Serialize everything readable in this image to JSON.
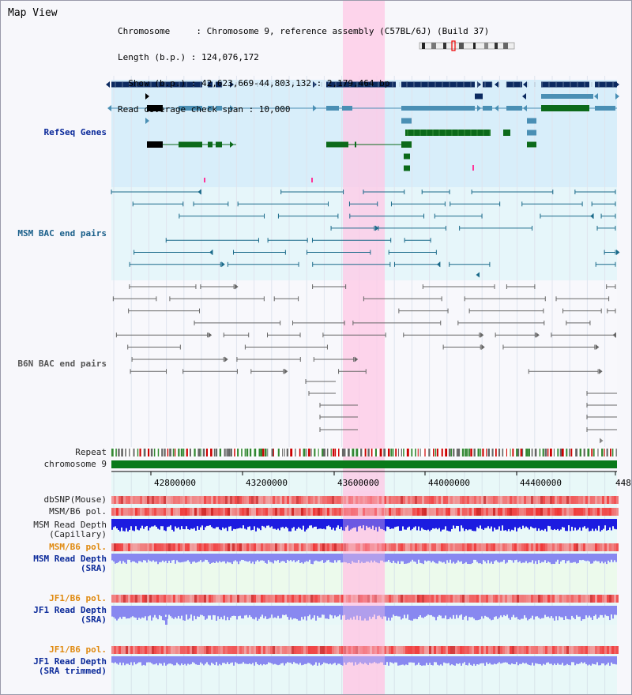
{
  "panel_title": "Map View",
  "info": {
    "line1": "Chromosome     : Chromosome 9, reference assembly (C57BL/6J) (Build 37)",
    "line2": "Length (b.p.) : 124,076,172",
    "line3": "  Show (b.p.) : 42,623,669-44,803,132 : 2,179,464 bp",
    "line4": "Read coverage check span : 10,000"
  },
  "tracks": {
    "refseq": "RefSeq Genes",
    "msm_bac": "MSM BAC end pairs",
    "b6n_bac": "B6N BAC end pairs",
    "repeat": "Repeat",
    "chromosome": "chromosome 9",
    "dbsnp": "dbSNP(Mouse)",
    "msm_b6_pol_1": "MSM/B6 pol.",
    "msm_read_depth_cap": "MSM Read Depth\n(Capillary)",
    "msm_b6_pol_2": "MSM/B6 pol.",
    "msm_read_depth_sra": "MSM Read Depth\n(SRA)",
    "jf1_b6_pol_1": "JF1/B6 pol.",
    "jf1_read_depth_sra": "JF1 Read Depth\n(SRA)",
    "jf1_b6_pol_2": "JF1/B6 pol.",
    "jf1_read_depth_trim": "JF1 Read Depth\n(SRA trimmed)"
  },
  "axis_ticks": [
    "42800000",
    "43200000",
    "43600000",
    "44000000",
    "44400000",
    "448"
  ],
  "colors": {
    "refseq_bg": "#d8eefa",
    "msm_bac_bg": "#e6f6fa",
    "highlight": "#ffc8e6",
    "chromosome": "#0a7a1a",
    "read_depth_capillary": "#1c1ce0",
    "read_depth_sra": "#8888f0"
  }
}
